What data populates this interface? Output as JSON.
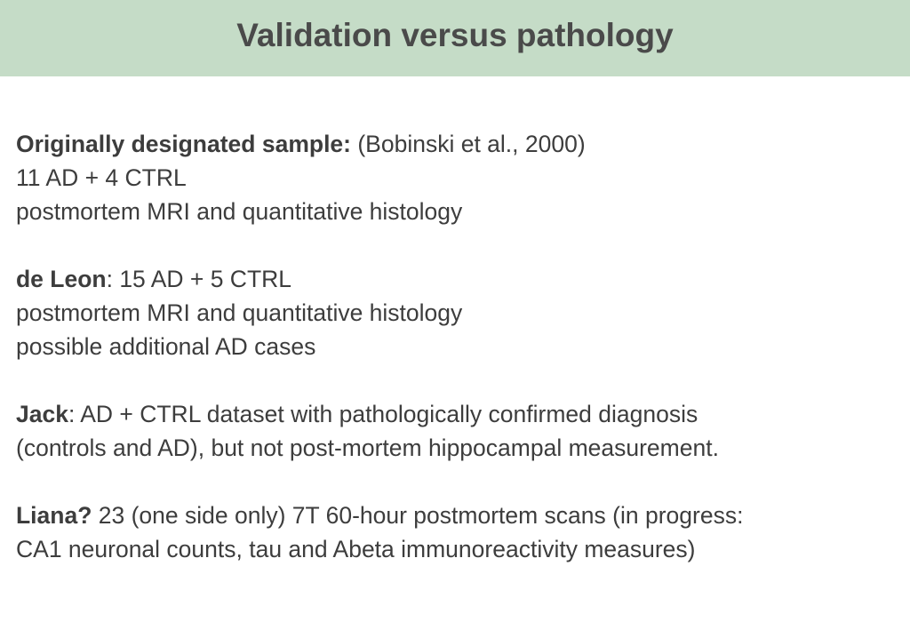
{
  "slide": {
    "title": "Validation versus pathology",
    "accent_color": "#c5dcc7"
  },
  "blocks": [
    {
      "lines": [
        {
          "bold": "Originally designated sample:",
          "text": " (Bobinski et al., 2000)"
        },
        {
          "bold": "",
          "text": "11 AD + 4 CTRL"
        },
        {
          "bold": "",
          "text": "postmortem MRI and quantitative histology"
        }
      ]
    },
    {
      "lines": [
        {
          "bold": "de Leon",
          "text": ": 15 AD + 5 CTRL"
        },
        {
          "bold": "",
          "text": "postmortem MRI and quantitative histology"
        },
        {
          "bold": "",
          "text": "possible additional AD cases"
        }
      ]
    },
    {
      "lines": [
        {
          "bold": "Jack",
          "text": ": AD + CTRL dataset with pathologically confirmed diagnosis"
        },
        {
          "bold": "",
          "text": "(controls and AD), but not post-mortem hippocampal measurement."
        }
      ]
    },
    {
      "lines": [
        {
          "bold": "Liana?",
          "text": " 23 (one side only) 7T 60-hour postmortem scans (in progress:"
        },
        {
          "bold": "",
          "text": "CA1 neuronal counts, tau and Abeta immunoreactivity measures)"
        }
      ]
    }
  ]
}
